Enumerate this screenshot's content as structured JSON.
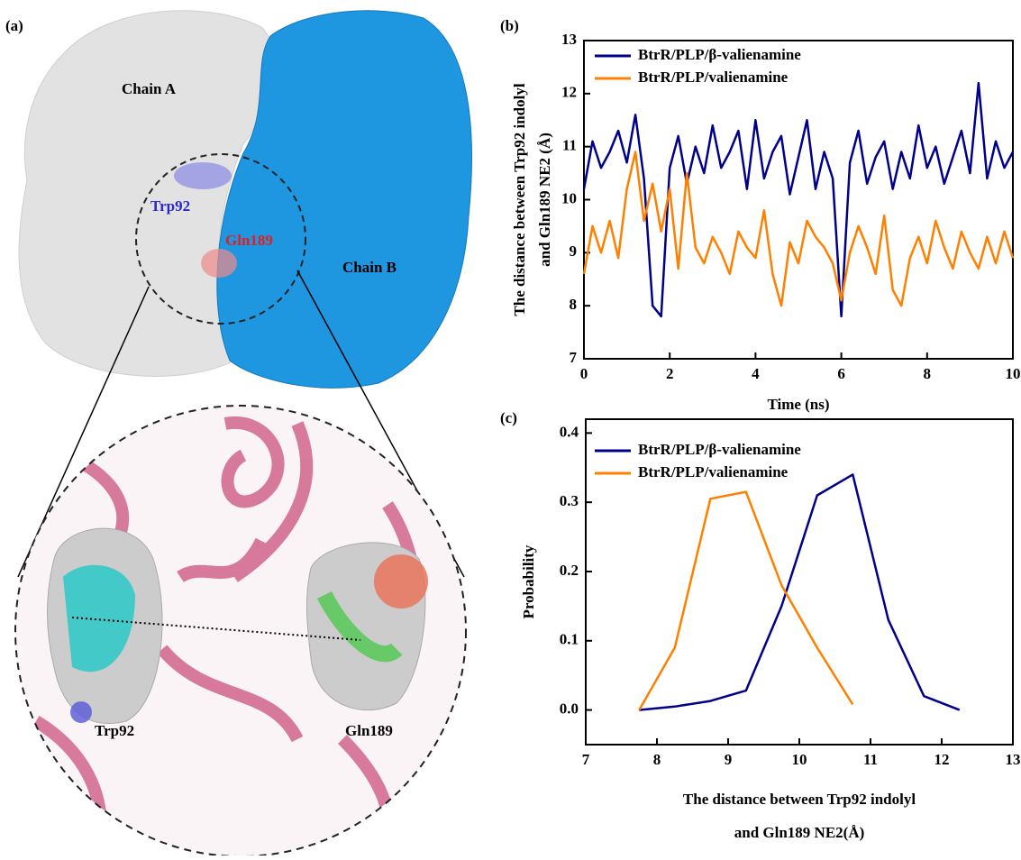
{
  "panel_a": {
    "label": "(a)",
    "chain_a": "Chain A",
    "chain_b": "Chain B",
    "trp_top": "Trp92",
    "gln_top": "Gln189",
    "trp_zoom": "Trp92",
    "gln_zoom": "Gln189"
  },
  "chart_data": [
    {
      "type": "line",
      "label": "(b)",
      "xlabel": "Time (ns)",
      "ylabel": [
        "The distance between Trp92 indolyl",
        "and Gln189 NE2 (Å)"
      ],
      "xlim": [
        0,
        10
      ],
      "xticks": [
        0,
        2,
        4,
        6,
        8,
        10
      ],
      "ylim": [
        7,
        13
      ],
      "yticks": [
        7,
        8,
        9,
        10,
        11,
        12,
        13
      ],
      "legend": "upper-left",
      "x": [
        0,
        0.2,
        0.4,
        0.6,
        0.8,
        1.0,
        1.2,
        1.4,
        1.6,
        1.8,
        2.0,
        2.2,
        2.4,
        2.6,
        2.8,
        3.0,
        3.2,
        3.4,
        3.6,
        3.8,
        4.0,
        4.2,
        4.4,
        4.6,
        4.8,
        5.0,
        5.2,
        5.4,
        5.6,
        5.8,
        6.0,
        6.2,
        6.4,
        6.6,
        6.8,
        7.0,
        7.2,
        7.4,
        7.6,
        7.8,
        8.0,
        8.2,
        8.4,
        8.6,
        8.8,
        9.0,
        9.2,
        9.4,
        9.6,
        9.8,
        10.0
      ],
      "series": [
        {
          "name": "BtrR/PLP/β-valienamine",
          "color": "#00008b",
          "values": [
            10.2,
            11.1,
            10.6,
            10.9,
            11.3,
            10.7,
            11.6,
            10.4,
            8.0,
            7.8,
            10.6,
            11.2,
            10.3,
            11.0,
            10.5,
            11.4,
            10.6,
            10.9,
            11.3,
            10.2,
            11.5,
            10.4,
            10.9,
            11.2,
            10.1,
            10.8,
            11.5,
            10.2,
            10.9,
            10.4,
            7.8,
            10.7,
            11.3,
            10.3,
            10.8,
            11.1,
            10.2,
            10.9,
            10.4,
            11.4,
            10.6,
            11.0,
            10.3,
            10.8,
            11.3,
            10.5,
            12.2,
            10.4,
            11.1,
            10.6,
            10.9
          ]
        },
        {
          "name": "BtrR/PLP/valienamine",
          "color": "#ff8000",
          "values": [
            8.6,
            9.5,
            9.0,
            9.6,
            8.9,
            10.2,
            10.9,
            9.6,
            10.3,
            9.4,
            10.2,
            8.7,
            10.5,
            9.1,
            8.8,
            9.3,
            9.0,
            8.6,
            9.4,
            9.1,
            8.9,
            9.8,
            8.6,
            8.0,
            9.2,
            8.8,
            9.6,
            9.3,
            9.1,
            8.8,
            8.1,
            9.0,
            9.5,
            9.1,
            8.6,
            9.7,
            8.3,
            8.0,
            8.9,
            9.3,
            8.8,
            9.6,
            9.1,
            8.7,
            9.4,
            9.0,
            8.7,
            9.3,
            8.8,
            9.4,
            8.9
          ]
        }
      ]
    },
    {
      "type": "line",
      "label": "(c)",
      "xlabel": [
        "The distance between Trp92 indolyl",
        "and Gln189 NE2(Å)"
      ],
      "ylabel": [
        "Probability"
      ],
      "xlim": [
        7,
        13
      ],
      "xticks": [
        7,
        8,
        9,
        10,
        11,
        12,
        13
      ],
      "ylim": [
        -0.05,
        0.42
      ],
      "yticks": [
        {
          "value": 0,
          "label": "0.0"
        },
        0.1,
        0.2,
        0.3,
        0.4
      ],
      "legend": "upper-left",
      "series": [
        {
          "name": "BtrR/PLP/β-valienamine",
          "color": "#00008b",
          "x": [
            7.75,
            8.25,
            8.75,
            9.25,
            9.75,
            10.25,
            10.75,
            11.25,
            11.75,
            12.25
          ],
          "values": [
            0,
            0.005,
            0.013,
            0.028,
            0.15,
            0.31,
            0.34,
            0.13,
            0.02,
            0
          ]
        },
        {
          "name": "BtrR/PLP/valienamine",
          "color": "#ff8000",
          "x": [
            7.75,
            8.25,
            8.75,
            9.25,
            9.75,
            10.25,
            10.75
          ],
          "values": [
            0,
            0.09,
            0.305,
            0.315,
            0.18,
            0.09,
            0.008
          ]
        }
      ]
    }
  ]
}
